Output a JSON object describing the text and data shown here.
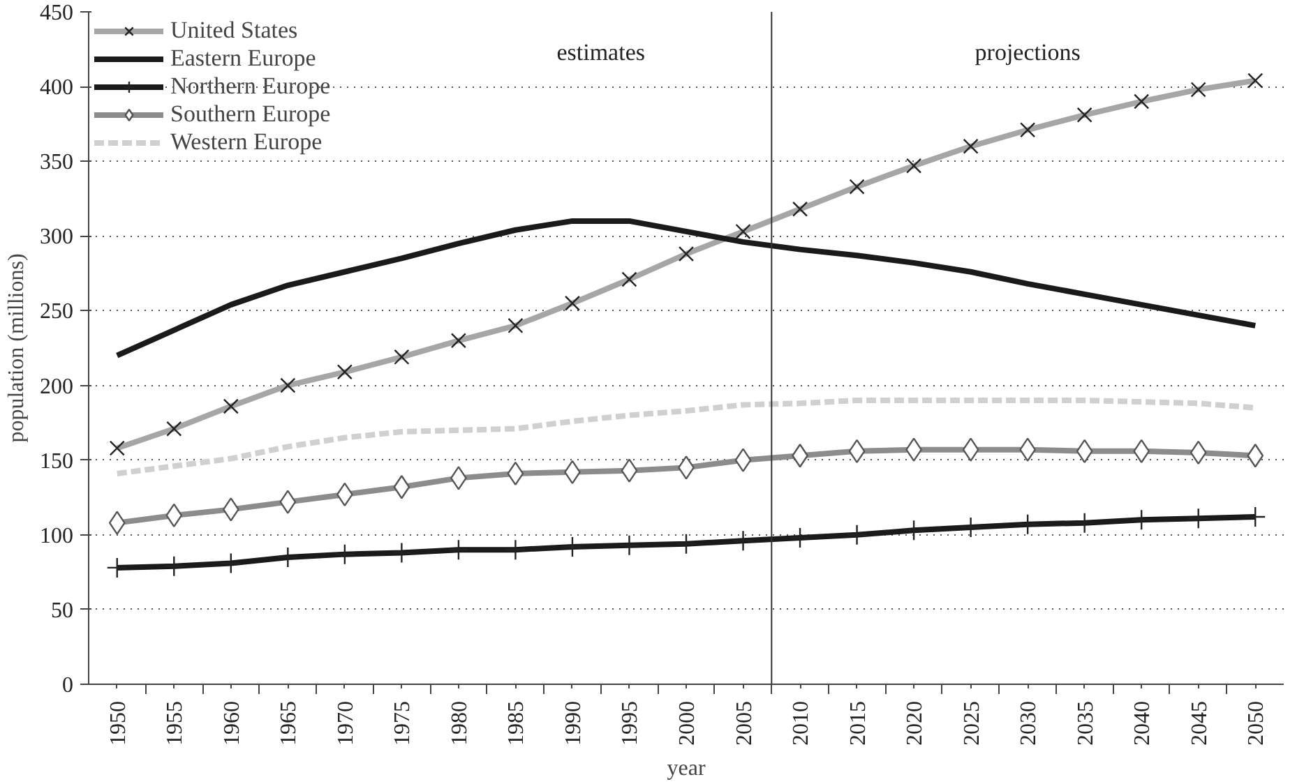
{
  "chart_data": {
    "type": "line",
    "xlabel": "year",
    "ylabel": "population (millions)",
    "x": [
      1950,
      1955,
      1960,
      1965,
      1970,
      1975,
      1980,
      1985,
      1990,
      1995,
      2000,
      2005,
      2010,
      2015,
      2020,
      2025,
      2030,
      2035,
      2040,
      2045,
      2050
    ],
    "xlim": [
      1947.5,
      2052.5
    ],
    "ylim": [
      0,
      450
    ],
    "yticks": [
      0,
      50,
      100,
      150,
      200,
      250,
      300,
      350,
      400,
      450
    ],
    "xticks": [
      {
        "value": 1950,
        "label": "1950"
      },
      {
        "value": 1955,
        "label": "1955"
      },
      {
        "value": 1960,
        "label": "1960"
      },
      {
        "value": 1965,
        "label": "1965"
      },
      {
        "value": 1970,
        "label": "1970"
      },
      {
        "value": 1975,
        "label": "1975"
      },
      {
        "value": 1980,
        "label": "1980"
      },
      {
        "value": 1985,
        "label": "1985"
      },
      {
        "value": 1990,
        "label": "1990"
      },
      {
        "value": 1995,
        "label": "1995"
      },
      {
        "value": 2000,
        "label": "2000"
      },
      {
        "value": 2005,
        "label": "2005"
      },
      {
        "value": 2010,
        "label": "2010"
      },
      {
        "value": 2015,
        "label": "2015"
      },
      {
        "value": 2020,
        "label": "2020"
      },
      {
        "value": 2025,
        "label": "2025"
      },
      {
        "value": 2030,
        "label": "2030"
      },
      {
        "value": 2035,
        "label": "2035"
      },
      {
        "value": 2040,
        "label": "2040"
      },
      {
        "value": 2045,
        "label": "2045"
      },
      {
        "value": 2050,
        "label": "2050"
      }
    ],
    "grid": "y",
    "legend": "top left",
    "ref_lines": [
      {
        "axis": "x",
        "value": 2007.5,
        "label": null,
        "color": "#333333"
      }
    ],
    "annotations": [
      "estimates",
      "projections"
    ],
    "series": [
      {
        "name": "United States",
        "color": "#a6a6a6",
        "marker": "cross",
        "line_style": "solid",
        "values": [
          158,
          171,
          186,
          200,
          209,
          219,
          230,
          240,
          255,
          271,
          288,
          303,
          318,
          333,
          347,
          360,
          371,
          381,
          390,
          398,
          404
        ]
      },
      {
        "name": "Eastern Europe",
        "color": "#1a1a1a",
        "marker": "none",
        "line_style": "solid",
        "values": [
          220,
          237,
          254,
          267,
          276,
          285,
          295,
          304,
          310,
          310,
          303,
          296,
          291,
          287,
          282,
          276,
          268,
          261,
          254,
          247,
          240
        ]
      },
      {
        "name": "Northern Europe",
        "color": "#1a1a1a",
        "marker": "plus",
        "line_style": "solid",
        "values": [
          78,
          79,
          81,
          85,
          87,
          88,
          90,
          90,
          92,
          93,
          94,
          96,
          98,
          100,
          103,
          105,
          107,
          108,
          110,
          111,
          112
        ]
      },
      {
        "name": "Southern Europe",
        "color": "#8c8c8c",
        "marker": "diamond",
        "line_style": "solid",
        "values": [
          108,
          113,
          117,
          122,
          127,
          132,
          138,
          141,
          142,
          143,
          145,
          150,
          153,
          156,
          157,
          157,
          157,
          156,
          156,
          155,
          153
        ]
      },
      {
        "name": "Western Europe",
        "color": "#d0d0d0",
        "marker": "none",
        "line_style": "dashed",
        "values": [
          141,
          146,
          151,
          159,
          165,
          169,
          170,
          171,
          176,
          180,
          183,
          187,
          188,
          190,
          190,
          190,
          190,
          190,
          189,
          188,
          185
        ]
      }
    ]
  }
}
